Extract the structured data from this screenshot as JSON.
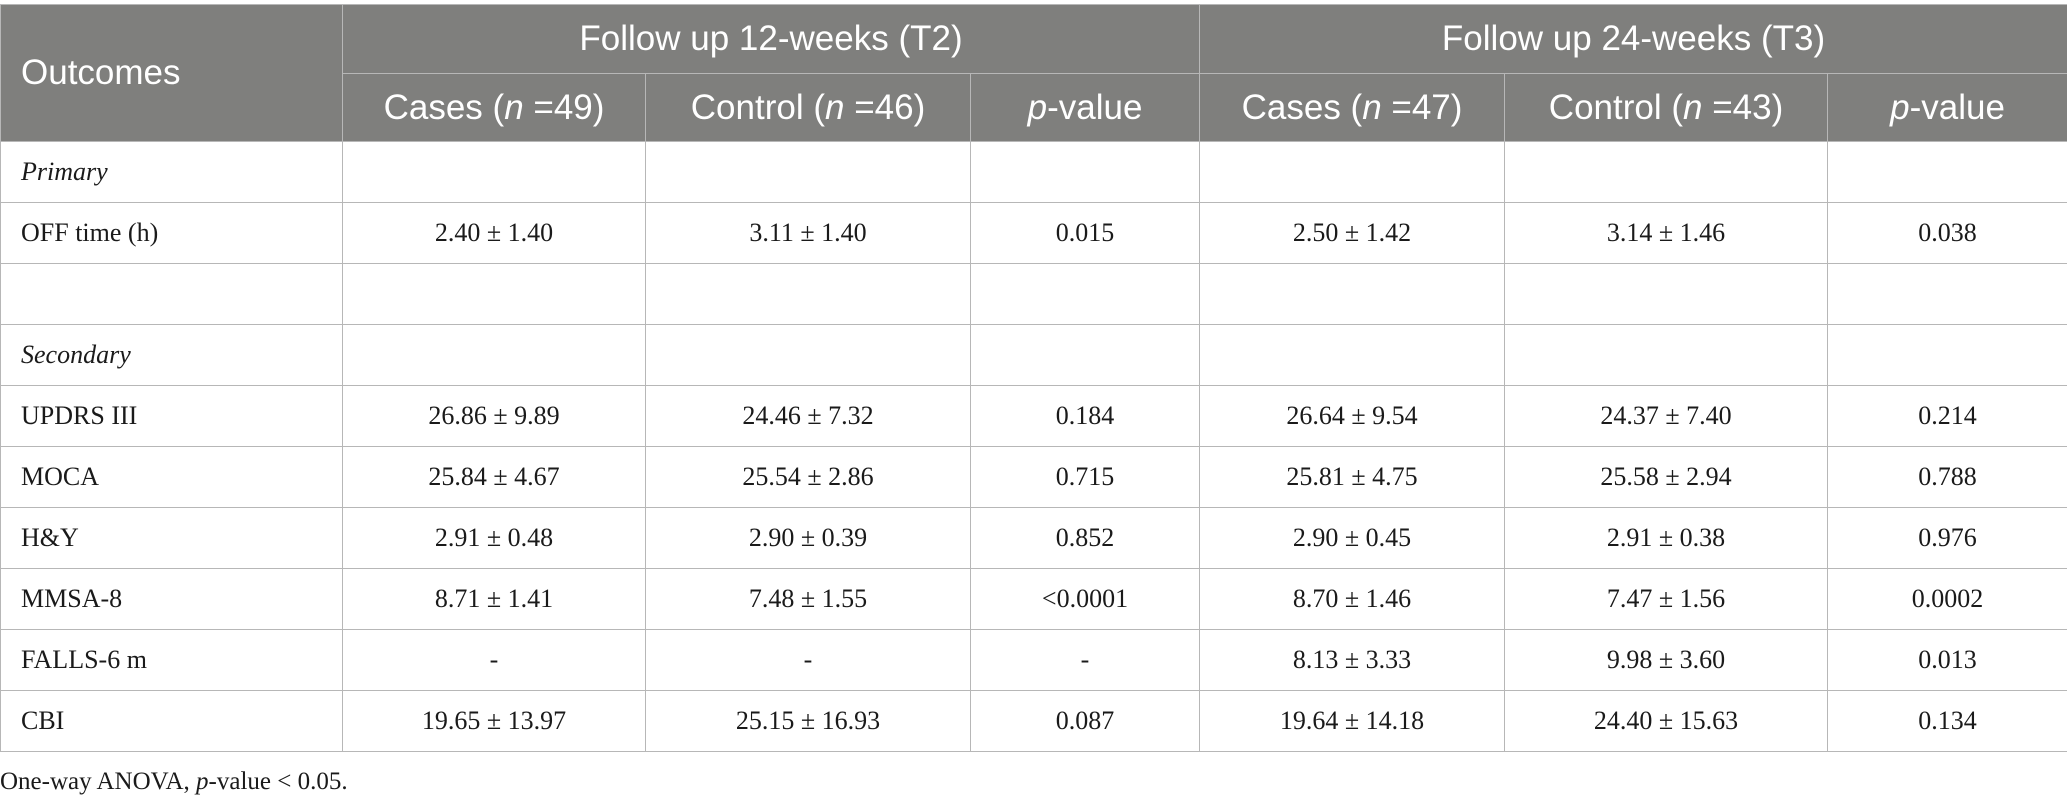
{
  "table": {
    "corner_header": "Outcomes",
    "group_headers": [
      "Follow up 12-weeks (T2)",
      "Follow up 24-weeks (T3)"
    ],
    "columns": [
      {
        "prefix": "Cases (",
        "var": "n",
        "suffix": " =49)"
      },
      {
        "prefix": "Control (",
        "var": "n",
        "suffix": " =46)"
      },
      {
        "prefix": "",
        "var": "p",
        "suffix": "-value"
      },
      {
        "prefix": "Cases (",
        "var": "n",
        "suffix": " =47)"
      },
      {
        "prefix": "Control (",
        "var": "n",
        "suffix": " =43)"
      },
      {
        "prefix": "",
        "var": "p",
        "suffix": "-value"
      }
    ],
    "rows": [
      {
        "label": "Primary",
        "section": true,
        "cells": [
          "",
          "",
          "",
          "",
          "",
          ""
        ]
      },
      {
        "label": "OFF time (h)",
        "section": false,
        "cells": [
          "2.40 ± 1.40",
          "3.11 ± 1.40",
          "0.015",
          "2.50 ± 1.42",
          "3.14 ± 1.46",
          "0.038"
        ]
      },
      {
        "label": "",
        "section": false,
        "cells": [
          "",
          "",
          "",
          "",
          "",
          ""
        ]
      },
      {
        "label": "Secondary",
        "section": true,
        "cells": [
          "",
          "",
          "",
          "",
          "",
          ""
        ]
      },
      {
        "label": "UPDRS III",
        "section": false,
        "cells": [
          "26.86 ± 9.89",
          "24.46 ± 7.32",
          "0.184",
          "26.64 ± 9.54",
          "24.37 ± 7.40",
          "0.214"
        ]
      },
      {
        "label": "MOCA",
        "section": false,
        "cells": [
          "25.84 ± 4.67",
          "25.54 ± 2.86",
          "0.715",
          "25.81 ± 4.75",
          "25.58 ± 2.94",
          "0.788"
        ]
      },
      {
        "label": "H&Y",
        "section": false,
        "cells": [
          "2.91 ± 0.48",
          "2.90 ± 0.39",
          "0.852",
          "2.90 ± 0.45",
          "2.91 ± 0.38",
          "0.976"
        ]
      },
      {
        "label": "MMSA-8",
        "section": false,
        "cells": [
          "8.71 ± 1.41",
          "7.48 ± 1.55",
          "<0.0001",
          "8.70 ± 1.46",
          "7.47 ± 1.56",
          "0.0002"
        ]
      },
      {
        "label": "FALLS-6 m",
        "section": false,
        "cells": [
          "-",
          "-",
          "-",
          "8.13 ± 3.33",
          "9.98 ± 3.60",
          "0.013"
        ]
      },
      {
        "label": "CBI",
        "section": false,
        "cells": [
          "19.65 ± 13.97",
          "25.15 ± 16.93",
          "0.087",
          "19.64 ± 14.18",
          "24.40 ± 15.63",
          "0.134"
        ]
      }
    ]
  },
  "footnote": {
    "before": "One-way ANOVA, ",
    "var": "p",
    "after": "-value < 0.05."
  },
  "colors": {
    "header_bg": "#7f7f7d",
    "header_text": "#ffffff",
    "border": "#b7b7b7"
  }
}
